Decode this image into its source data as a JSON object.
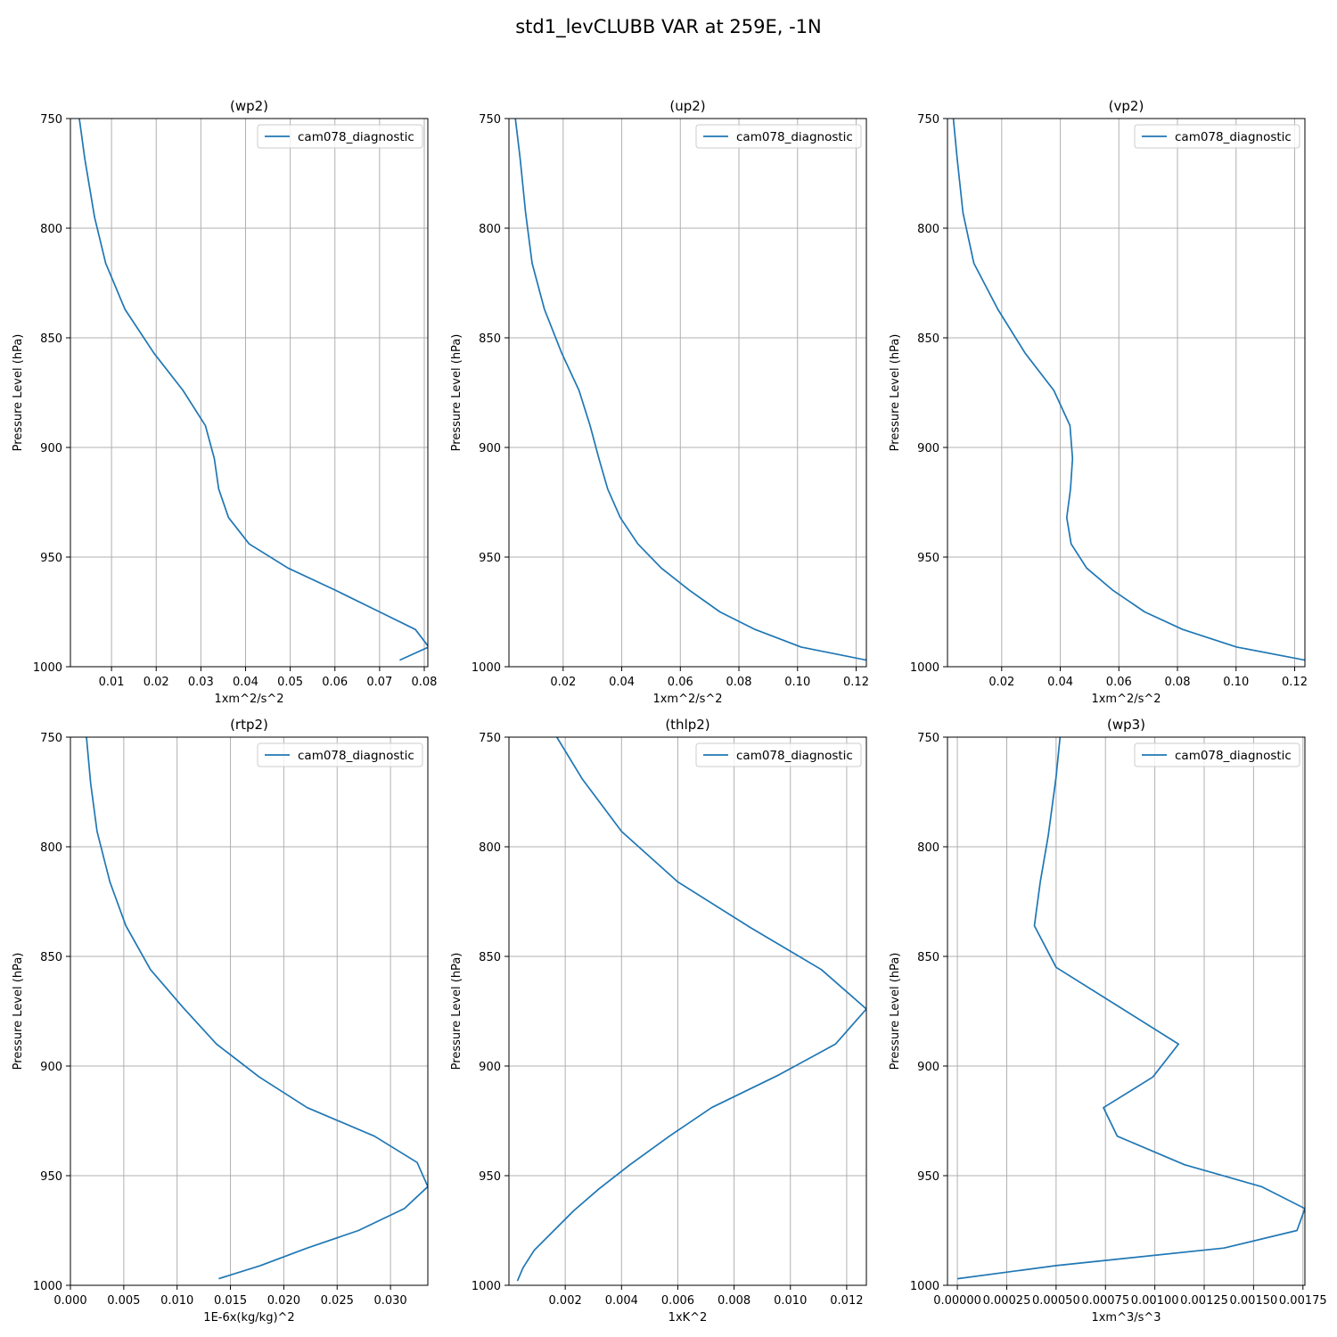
{
  "figure": {
    "title": "std1_levCLUBB VAR at 259E, -1N",
    "line_color": "#1f77b4"
  },
  "chart_data": [
    {
      "type": "line",
      "title": "(wp2)",
      "xlabel": "1xm^2/s^2",
      "ylabel": "Pressure Level (hPa)",
      "xlim": [
        0.0008,
        0.0808
      ],
      "ylim": [
        1000,
        750
      ],
      "xticks": [
        0.01,
        0.02,
        0.03,
        0.04,
        0.05,
        0.06,
        0.07,
        0.08
      ],
      "xtick_labels": [
        "0.01",
        "0.02",
        "0.03",
        "0.04",
        "0.05",
        "0.06",
        "0.07",
        "0.08"
      ],
      "yticks": [
        750,
        800,
        850,
        900,
        950,
        1000
      ],
      "ytick_labels": [
        "750",
        "800",
        "850",
        "900",
        "950",
        "1000"
      ],
      "grid": true,
      "legend_position": "top-right",
      "series": [
        {
          "name": "cam078_diagnostic",
          "x": [
            0.0028,
            0.004,
            0.0062,
            0.0087,
            0.013,
            0.0195,
            0.026,
            0.031,
            0.033,
            0.034,
            0.0362,
            0.0408,
            0.0495,
            0.06,
            0.07,
            0.078,
            0.081,
            0.0745
          ],
          "y": [
            750,
            768,
            795,
            816,
            837,
            857,
            874,
            890,
            905,
            919,
            932,
            944,
            955,
            965,
            975,
            983,
            991,
            997
          ]
        }
      ]
    },
    {
      "type": "line",
      "title": "(up2)",
      "xlabel": "1xm^2/s^2",
      "ylabel": "Pressure Level (hPa)",
      "xlim": [
        0.0015,
        0.1235
      ],
      "ylim": [
        1000,
        750
      ],
      "xticks": [
        0.02,
        0.04,
        0.06,
        0.08,
        0.1,
        0.12
      ],
      "xtick_labels": [
        "0.02",
        "0.04",
        "0.06",
        "0.08",
        "0.10",
        "0.12"
      ],
      "yticks": [
        750,
        800,
        850,
        900,
        950,
        1000
      ],
      "ytick_labels": [
        "750",
        "800",
        "850",
        "900",
        "950",
        "1000"
      ],
      "grid": true,
      "legend_position": "top-right",
      "series": [
        {
          "name": "cam078_diagnostic",
          "x": [
            0.0037,
            0.0053,
            0.0072,
            0.0094,
            0.0136,
            0.0195,
            0.0254,
            0.0292,
            0.0322,
            0.0352,
            0.0395,
            0.0455,
            0.0535,
            0.063,
            0.0735,
            0.0855,
            0.1012,
            0.1235
          ],
          "y": [
            750,
            768,
            793,
            816,
            837,
            857,
            874,
            890,
            905,
            919,
            932,
            944,
            955,
            965,
            975,
            983,
            991,
            997
          ]
        }
      ]
    },
    {
      "type": "line",
      "title": "(vp2)",
      "xlabel": "1xm^2/s^2",
      "ylabel": "Pressure Level (hPa)",
      "xlim": [
        0.0015,
        0.1235
      ],
      "ylim": [
        1000,
        750
      ],
      "xticks": [
        0.02,
        0.04,
        0.06,
        0.08,
        0.1,
        0.12
      ],
      "xtick_labels": [
        "0.02",
        "0.04",
        "0.06",
        "0.08",
        "0.10",
        "0.12"
      ],
      "yticks": [
        750,
        800,
        850,
        900,
        950,
        1000
      ],
      "ytick_labels": [
        "750",
        "800",
        "850",
        "900",
        "950",
        "1000"
      ],
      "grid": true,
      "legend_position": "top-right",
      "series": [
        {
          "name": "cam078_diagnostic",
          "x": [
            0.0035,
            0.0048,
            0.0068,
            0.0105,
            0.0187,
            0.028,
            0.0378,
            0.0433,
            0.0442,
            0.0435,
            0.0422,
            0.0437,
            0.049,
            0.0578,
            0.0688,
            0.0818,
            0.1002,
            0.1235
          ],
          "y": [
            750,
            768,
            793,
            816,
            837,
            857,
            874,
            890,
            905,
            919,
            932,
            944,
            955,
            965,
            975,
            983,
            991,
            997
          ]
        }
      ]
    },
    {
      "type": "line",
      "title": "(rtp2)",
      "xlabel": "1E-6x(kg/kg)^2",
      "ylabel": "Pressure Level (hPa)",
      "xlim": [
        0.0,
        0.0335
      ],
      "ylim": [
        1000,
        750
      ],
      "xticks": [
        0.0,
        0.005,
        0.01,
        0.015,
        0.02,
        0.025,
        0.03
      ],
      "xtick_labels": [
        "0.000",
        "0.005",
        "0.010",
        "0.015",
        "0.020",
        "0.025",
        "0.030"
      ],
      "yticks": [
        750,
        800,
        850,
        900,
        950,
        1000
      ],
      "ytick_labels": [
        "750",
        "800",
        "850",
        "900",
        "950",
        "1000"
      ],
      "grid": true,
      "legend_position": "top-right",
      "series": [
        {
          "name": "cam078_diagnostic",
          "x": [
            0.0015,
            0.0019,
            0.0025,
            0.0037,
            0.0052,
            0.0075,
            0.0105,
            0.0137,
            0.0177,
            0.0222,
            0.0285,
            0.0325,
            0.0335,
            0.0313,
            0.027,
            0.0222,
            0.0178,
            0.0139
          ],
          "y": [
            750,
            771,
            793,
            816,
            836,
            856,
            873,
            890,
            905,
            919,
            932,
            944,
            955,
            965,
            975,
            983,
            991,
            997
          ]
        }
      ]
    },
    {
      "type": "line",
      "title": "(thlp2)",
      "xlabel": "1xK^2",
      "ylabel": "Pressure Level (hPa)",
      "xlim": [
        0.0,
        0.0127
      ],
      "ylim": [
        1000,
        750
      ],
      "xticks": [
        0.002,
        0.004,
        0.006,
        0.008,
        0.01,
        0.012
      ],
      "xtick_labels": [
        "0.002",
        "0.004",
        "0.006",
        "0.008",
        "0.010",
        "0.012"
      ],
      "yticks": [
        750,
        800,
        850,
        900,
        950,
        1000
      ],
      "ytick_labels": [
        "750",
        "800",
        "850",
        "900",
        "950",
        "1000"
      ],
      "grid": true,
      "legend_position": "top-right",
      "series": [
        {
          "name": "cam078_diagnostic",
          "x": [
            0.0017,
            0.0026,
            0.004,
            0.006,
            0.0086,
            0.0111,
            0.0127,
            0.0116,
            0.0096,
            0.0072,
            0.0057,
            0.0043,
            0.0032,
            0.0023,
            0.0016,
            0.0009,
            0.0005,
            0.0003
          ],
          "y": [
            750,
            769,
            793,
            816,
            837,
            856,
            874,
            890,
            904,
            919,
            932,
            945,
            956,
            966,
            975,
            984,
            992,
            998
          ]
        }
      ]
    },
    {
      "type": "line",
      "title": "(wp3)",
      "xlabel": "1xm^3/s^3",
      "ylabel": "Pressure Level (hPa)",
      "xlim": [
        -5e-05,
        0.00176
      ],
      "ylim": [
        1000,
        750
      ],
      "xticks": [
        0.0,
        0.00025,
        0.0005,
        0.00075,
        0.001,
        0.00125,
        0.0015,
        0.00175
      ],
      "xtick_labels": [
        "0.00000",
        "0.00025",
        "0.00050",
        "0.00075",
        "0.00100",
        "0.00125",
        "0.00150",
        "0.00175"
      ],
      "yticks": [
        750,
        800,
        850,
        900,
        950,
        1000
      ],
      "ytick_labels": [
        "750",
        "800",
        "850",
        "900",
        "950",
        "1000"
      ],
      "grid": true,
      "legend_position": "top-right",
      "series": [
        {
          "name": "cam078_diagnostic",
          "x": [
            0.00052,
            0.0005,
            0.00046,
            0.00042,
            0.00039,
            0.0005,
            0.00082,
            0.00112,
            0.00099,
            0.00074,
            0.00081,
            0.00115,
            0.00154,
            0.00176,
            0.00172,
            0.00135,
            0.0005,
            0.0
          ],
          "y": [
            750,
            768,
            795,
            816,
            836,
            855,
            873,
            890,
            905,
            919,
            932,
            945,
            955,
            965,
            975,
            983,
            991,
            997
          ]
        }
      ]
    }
  ]
}
